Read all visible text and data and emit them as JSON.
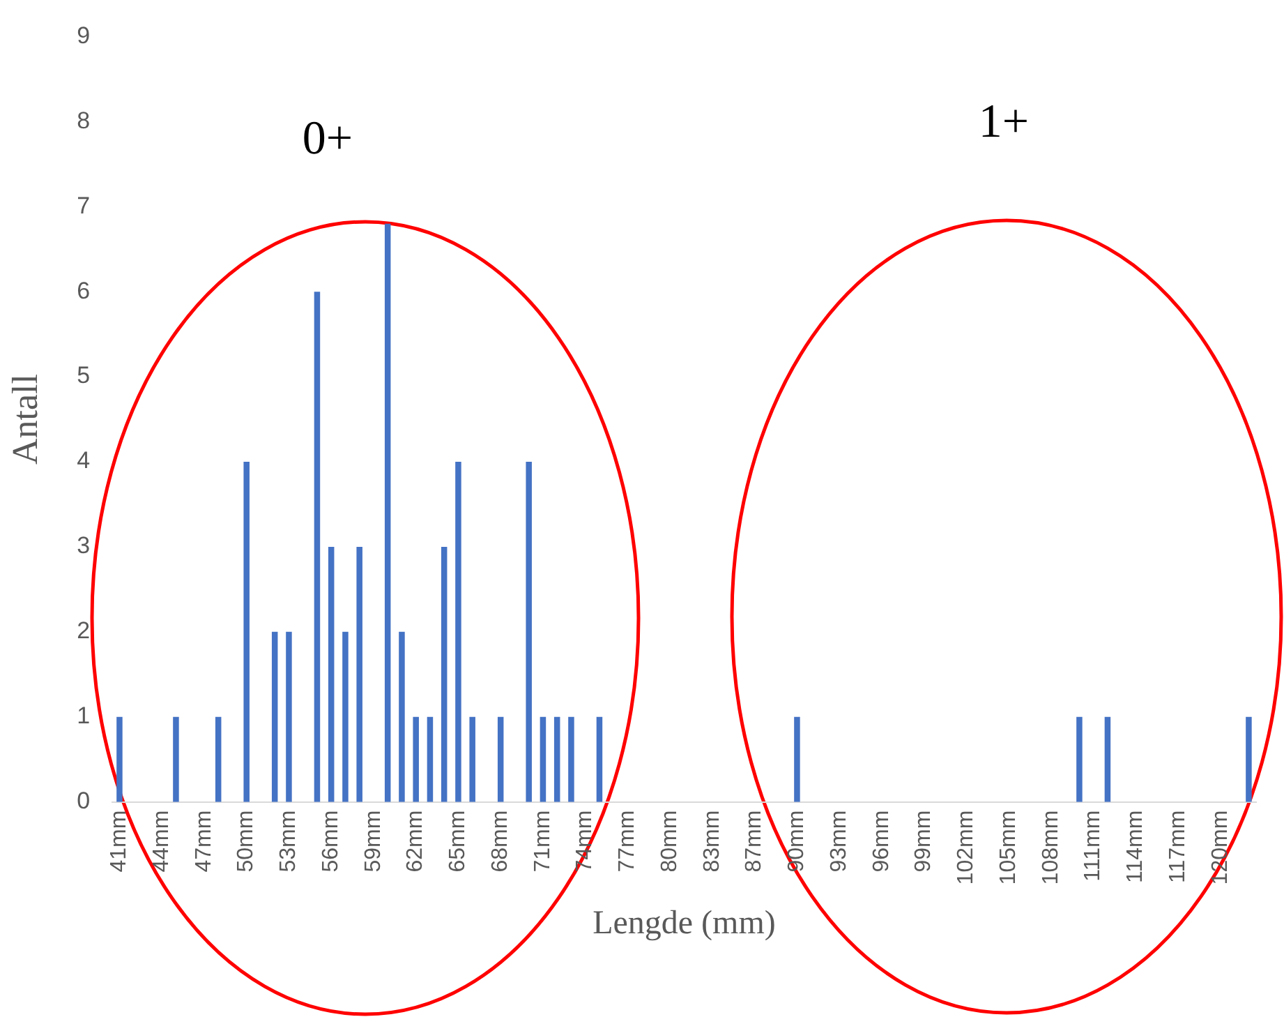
{
  "chart_data": {
    "type": "bar",
    "xlabel": "Lengde (mm)",
    "ylabel": "Antall",
    "categories": [
      "41mm",
      null,
      null,
      "44mm",
      null,
      null,
      "47mm",
      null,
      null,
      "50mm",
      null,
      null,
      "53mm",
      null,
      null,
      "56mm",
      null,
      null,
      "59mm",
      null,
      null,
      "62mm",
      null,
      null,
      "65mm",
      null,
      null,
      "68mm",
      null,
      null,
      "71mm",
      null,
      null,
      "74mm",
      null,
      null,
      "77mm",
      null,
      null,
      "80mm",
      null,
      null,
      "83mm",
      null,
      null,
      "87mm",
      null,
      null,
      "90mm",
      null,
      null,
      "93mm",
      null,
      null,
      "96mm",
      null,
      null,
      "99mm",
      null,
      null,
      "102mm",
      null,
      null,
      "105mm",
      null,
      null,
      "108mm",
      null,
      null,
      "111mm",
      null,
      null,
      "114mm",
      null,
      null,
      "117mm",
      null,
      null,
      "120mm",
      null,
      null
    ],
    "values": [
      1,
      0,
      0,
      0,
      1,
      0,
      0,
      1,
      0,
      4,
      0,
      2,
      2,
      0,
      6,
      3,
      2,
      3,
      0,
      6.8,
      2,
      1,
      1,
      3,
      4,
      1,
      0,
      1,
      0,
      4,
      1,
      1,
      1,
      0,
      1,
      0,
      0,
      0,
      0,
      0,
      0,
      0,
      0,
      0,
      0,
      0,
      0,
      0,
      1,
      0,
      0,
      0,
      0,
      0,
      0,
      0,
      0,
      0,
      0,
      0,
      0,
      0,
      0,
      0,
      0,
      0,
      0,
      0,
      1,
      0,
      1,
      0,
      0,
      0,
      0,
      0,
      0,
      0,
      0,
      0,
      1
    ],
    "color": "#4472c4",
    "ylim": [
      0,
      9
    ],
    "yticks": [
      0,
      1,
      2,
      3,
      4,
      5,
      6,
      7,
      8,
      9
    ],
    "grid": false,
    "legend": false,
    "annotations": [
      "0+",
      "1+"
    ]
  }
}
